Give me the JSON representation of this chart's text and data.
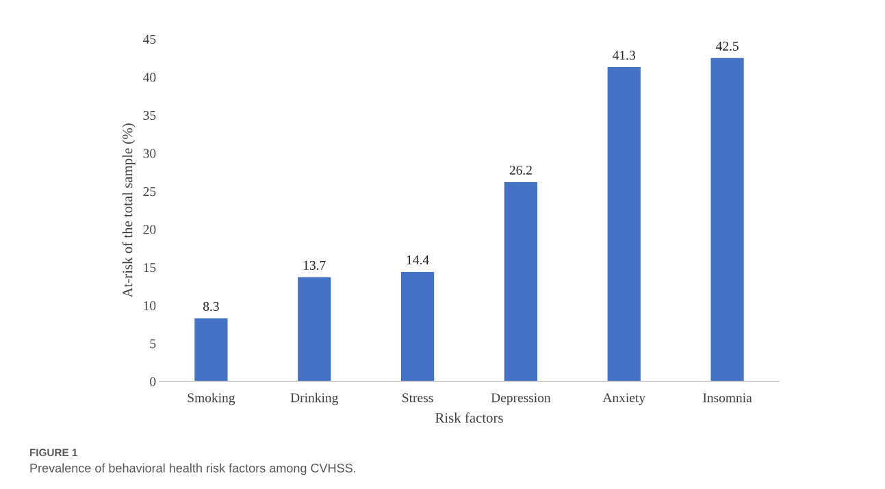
{
  "chart_data": {
    "type": "bar",
    "xlabel": "Risk factors",
    "ylabel": "At-risk of the total sample (%)",
    "categories": [
      "Smoking",
      "Drinking",
      "Stress",
      "Depression",
      "Anxiety",
      "Insomnia"
    ],
    "values": [
      8.3,
      13.7,
      14.4,
      26.2,
      41.3,
      42.5
    ],
    "color": "#4472c4",
    "ylim": [
      0,
      45
    ],
    "yticks": [
      0,
      5,
      10,
      15,
      20,
      25,
      30,
      35,
      40,
      45
    ],
    "data_labels": true,
    "grid": false,
    "legend": false,
    "annotations": [
      "FIGURE 1",
      "Prevalence of behavioral health risk factors among CVHSS."
    ]
  }
}
